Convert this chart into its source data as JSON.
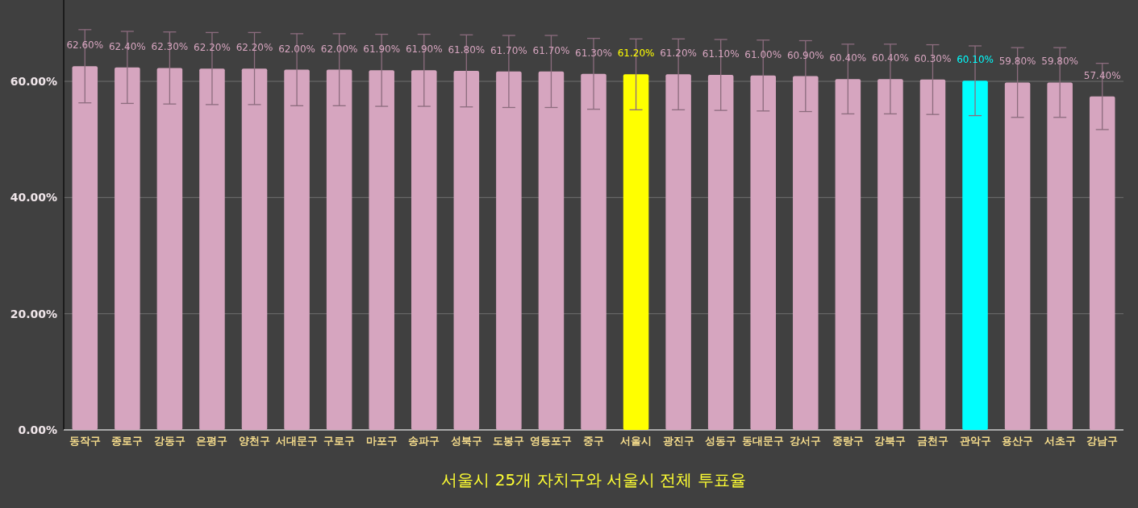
{
  "chart_data": {
    "type": "bar",
    "title": "서울시 25개 자치구와 서울시 전체 투표율",
    "categories": [
      "동작구",
      "종로구",
      "강동구",
      "은평구",
      "양천구",
      "서대문구",
      "구로구",
      "마포구",
      "송파구",
      "성북구",
      "도봉구",
      "영등포구",
      "중구",
      "서울시",
      "광진구",
      "성동구",
      "동대문구",
      "강서구",
      "중랑구",
      "강북구",
      "금천구",
      "관악구",
      "용산구",
      "서초구",
      "강남구"
    ],
    "values": [
      62.6,
      62.4,
      62.3,
      62.2,
      62.2,
      62.0,
      62.0,
      61.9,
      61.9,
      61.8,
      61.7,
      61.7,
      61.3,
      61.2,
      61.2,
      61.1,
      61.0,
      60.9,
      60.4,
      60.4,
      60.3,
      60.1,
      59.8,
      59.8,
      57.4
    ],
    "value_labels": [
      "62.60%",
      "62.40%",
      "62.30%",
      "62.20%",
      "62.20%",
      "62.00%",
      "62.00%",
      "61.90%",
      "61.90%",
      "61.80%",
      "61.70%",
      "61.70%",
      "61.30%",
      "61.20%",
      "61.20%",
      "61.10%",
      "61.00%",
      "60.90%",
      "60.40%",
      "60.40%",
      "60.30%",
      "60.10%",
      "59.80%",
      "59.80%",
      "57.40%"
    ],
    "colors": [
      "#d6a5bf",
      "#d6a5bf",
      "#d6a5bf",
      "#d6a5bf",
      "#d6a5bf",
      "#d6a5bf",
      "#d6a5bf",
      "#d6a5bf",
      "#d6a5bf",
      "#d6a5bf",
      "#d6a5bf",
      "#d6a5bf",
      "#d6a5bf",
      "#ffff00",
      "#d6a5bf",
      "#d6a5bf",
      "#d6a5bf",
      "#d6a5bf",
      "#d6a5bf",
      "#d6a5bf",
      "#d6a5bf",
      "#00ffff",
      "#d6a5bf",
      "#d6a5bf",
      "#d6a5bf"
    ],
    "errors": [
      6.3,
      6.2,
      6.2,
      6.2,
      6.2,
      6.2,
      6.2,
      6.2,
      6.2,
      6.2,
      6.2,
      6.2,
      6.1,
      6.1,
      6.1,
      6.1,
      6.1,
      6.1,
      6.0,
      6.0,
      6.0,
      6.0,
      6.0,
      6.0,
      5.7
    ],
    "ylim": [
      0,
      74
    ],
    "yticks": [
      {
        "value": 0,
        "label": "0.00%"
      },
      {
        "value": 20,
        "label": "20.00%"
      },
      {
        "value": 40,
        "label": "40.00%"
      },
      {
        "value": 60,
        "label": "60.00%"
      }
    ],
    "grid": "y"
  }
}
